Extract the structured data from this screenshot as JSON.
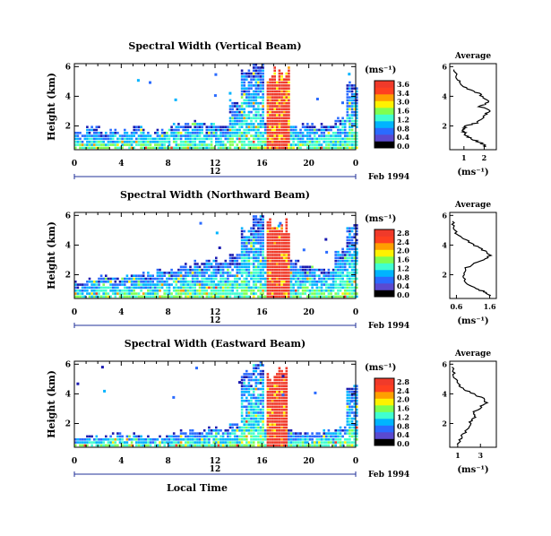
{
  "chart_data": [
    {
      "type": "heatmap",
      "title": "Spectral Width (Vertical Beam)",
      "ylabel": "Height (km)",
      "xlabel": "",
      "xticks": [
        "0",
        "4",
        "8",
        "12",
        "16",
        "20",
        "0"
      ],
      "xlim": [
        0,
        24
      ],
      "yticks": [
        "2",
        "4",
        "6"
      ],
      "ylim": [
        0.4,
        6.2
      ],
      "date_label": "12",
      "month_label": "Feb 1994",
      "colorbar": {
        "unit": "(ms⁻¹)",
        "ticks": [
          "3.6",
          "3.4",
          "3.0",
          "1.6",
          "1.2",
          "0.8",
          "0.4",
          "0.0"
        ],
        "colors": [
          "#000000",
          "#5a4ad0",
          "#2a6bff",
          "#00b4ff",
          "#40ffd0",
          "#7fff50",
          "#fff200",
          "#ff9f00",
          "#ff4020",
          "#f03a2a"
        ]
      },
      "field": {
        "top_height": [
          1.5,
          1.8,
          1.4,
          1.7,
          1.6,
          1.9,
          1.5,
          1.7,
          2.0,
          2.1,
          2.2,
          2.0,
          2.0,
          3.6,
          5.6,
          6.0,
          2.2,
          2.1,
          2.0,
          2.0,
          2.0,
          2.0,
          2.4,
          4.8
        ],
        "convective_hours": [
          16.3,
          18.2
        ],
        "convective_top": 6.1
      },
      "average_panel": {
        "title": "Average",
        "xlabel": "(ms⁻¹)",
        "xticks": [
          "1",
          "2"
        ],
        "yticks": [
          "2",
          "4",
          "6"
        ],
        "xlim": [
          0.3,
          2.6
        ],
        "profile": [
          [
            2.1,
            0.6
          ],
          [
            1.9,
            0.8
          ],
          [
            1.6,
            1.0
          ],
          [
            1.3,
            1.2
          ],
          [
            1.1,
            1.4
          ],
          [
            1.0,
            1.6
          ],
          [
            0.95,
            1.8
          ],
          [
            1.1,
            2.0
          ],
          [
            1.6,
            2.2
          ],
          [
            1.9,
            2.5
          ],
          [
            2.1,
            2.8
          ],
          [
            2.3,
            3.0
          ],
          [
            1.8,
            3.3
          ],
          [
            2.2,
            3.6
          ],
          [
            2.0,
            3.9
          ],
          [
            1.7,
            4.2
          ],
          [
            1.2,
            4.5
          ],
          [
            0.9,
            4.8
          ],
          [
            0.7,
            5.1
          ],
          [
            0.6,
            5.4
          ],
          [
            0.5,
            5.8
          ]
        ]
      }
    },
    {
      "type": "heatmap",
      "title": "Spectral Width (Northward Beam)",
      "ylabel": "Height (km)",
      "xlabel": "",
      "xticks": [
        "0",
        "4",
        "8",
        "12",
        "16",
        "20",
        "0"
      ],
      "xlim": [
        0,
        24
      ],
      "yticks": [
        "2",
        "4",
        "6"
      ],
      "ylim": [
        0.4,
        6.2
      ],
      "date_label": "12",
      "month_label": "Feb 1994",
      "colorbar": {
        "unit": "(ms⁻¹)",
        "ticks": [
          "2.8",
          "2.4",
          "2.0",
          "1.6",
          "1.2",
          "0.8",
          "0.4",
          "0.0"
        ],
        "colors": [
          "#000000",
          "#5a4ad0",
          "#2a6bff",
          "#00b4ff",
          "#40ffd0",
          "#7fff50",
          "#fff200",
          "#ff9f00",
          "#ff4020",
          "#f03a2a"
        ]
      },
      "field": {
        "top_height": [
          1.4,
          1.6,
          1.8,
          1.7,
          1.9,
          2.0,
          2.1,
          2.2,
          2.3,
          2.6,
          2.8,
          3.0,
          2.8,
          3.2,
          5.0,
          5.9,
          3.2,
          3.5,
          3.0,
          2.6,
          2.4,
          2.3,
          3.6,
          5.2
        ],
        "convective_hours": [
          16.2,
          18.3
        ],
        "convective_top": 5.9
      },
      "average_panel": {
        "title": "Average",
        "xlabel": "(ms⁻¹)",
        "xticks": [
          "0.6",
          "1.6"
        ],
        "yticks": [
          "2",
          "4",
          "6"
        ],
        "xlim": [
          0.4,
          1.8
        ],
        "profile": [
          [
            1.65,
            0.6
          ],
          [
            1.5,
            0.8
          ],
          [
            1.25,
            1.0
          ],
          [
            1.0,
            1.3
          ],
          [
            0.85,
            1.6
          ],
          [
            0.8,
            2.0
          ],
          [
            0.85,
            2.4
          ],
          [
            1.1,
            2.7
          ],
          [
            1.4,
            3.0
          ],
          [
            1.6,
            3.3
          ],
          [
            1.45,
            3.6
          ],
          [
            1.2,
            3.9
          ],
          [
            1.0,
            4.2
          ],
          [
            0.75,
            4.5
          ],
          [
            0.6,
            4.8
          ],
          [
            0.5,
            5.2
          ],
          [
            0.48,
            5.6
          ]
        ]
      }
    },
    {
      "type": "heatmap",
      "title": "Spectral Width (Eastward Beam)",
      "ylabel": "Height (km)",
      "xlabel": "Local Time",
      "xticks": [
        "0",
        "4",
        "8",
        "12",
        "16",
        "20",
        "0"
      ],
      "xlim": [
        0,
        24
      ],
      "yticks": [
        "2",
        "4",
        "6"
      ],
      "ylim": [
        0.4,
        6.2
      ],
      "date_label": "12",
      "month_label": "Feb 1994",
      "colorbar": {
        "unit": "(ms⁻¹)",
        "ticks": [
          "2.8",
          "2.4",
          "2.0",
          "1.6",
          "1.2",
          "0.8",
          "0.4",
          "0.0"
        ],
        "colors": [
          "#000000",
          "#5a4ad0",
          "#2a6bff",
          "#00b4ff",
          "#40ffd0",
          "#7fff50",
          "#fff200",
          "#ff9f00",
          "#ff4020",
          "#f03a2a"
        ]
      },
      "field": {
        "top_height": [
          1.0,
          1.1,
          1.0,
          1.2,
          1.0,
          1.2,
          1.1,
          1.1,
          1.3,
          1.5,
          1.4,
          1.6,
          1.5,
          1.8,
          5.4,
          6.0,
          1.6,
          1.5,
          1.4,
          1.3,
          1.3,
          1.4,
          1.7,
          4.4
        ],
        "convective_hours": [
          16.2,
          18.0
        ],
        "convective_top": 6.0
      },
      "average_panel": {
        "title": "Average",
        "xlabel": "(ms⁻¹)",
        "xticks": [
          "1",
          "3"
        ],
        "yticks": [
          "2",
          "4",
          "6"
        ],
        "xlim": [
          0.3,
          4.4
        ],
        "profile": [
          [
            1.1,
            0.6
          ],
          [
            1.3,
            1.0
          ],
          [
            1.6,
            1.4
          ],
          [
            1.9,
            1.8
          ],
          [
            2.2,
            2.2
          ],
          [
            2.6,
            2.5
          ],
          [
            2.4,
            2.8
          ],
          [
            3.0,
            3.1
          ],
          [
            3.6,
            3.4
          ],
          [
            3.2,
            3.7
          ],
          [
            2.4,
            4.0
          ],
          [
            1.6,
            4.3
          ],
          [
            1.1,
            4.6
          ],
          [
            0.8,
            5.0
          ],
          [
            0.6,
            5.4
          ],
          [
            0.5,
            5.8
          ]
        ]
      }
    }
  ]
}
